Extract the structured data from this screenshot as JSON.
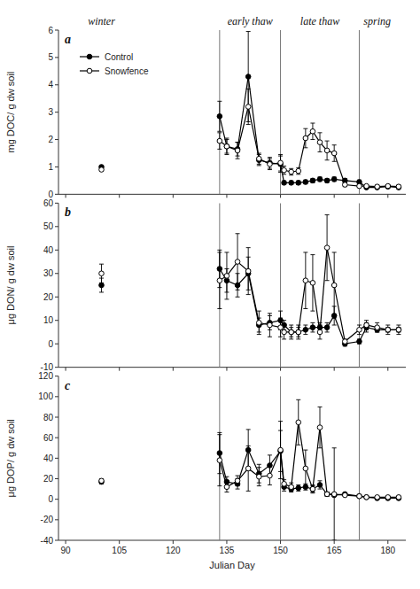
{
  "chart_data": [
    {
      "type": "line",
      "title": "a",
      "ylabel": "mg DOC/ g dw soil",
      "xlim": [
        88,
        185
      ],
      "xticks": [
        90,
        105,
        120,
        135,
        150,
        165,
        180
      ],
      "ylim": [
        0,
        6
      ],
      "yticks": [
        0,
        1,
        2,
        3,
        4,
        5,
        6
      ],
      "tick_labels": "y",
      "legend": "upper left",
      "vlines": [
        133,
        150,
        172
      ],
      "annotations": [
        {
          "text": "winter",
          "x": 100
        },
        {
          "text": "early thaw",
          "x": 141.5
        },
        {
          "text": "late thaw",
          "x": 161
        },
        {
          "text": "spring",
          "x": 177
        }
      ],
      "series": [
        {
          "name": "Control",
          "color": "black",
          "marker": "circle",
          "line_style": "solid",
          "x": [
            133,
            135,
            138,
            141,
            144,
            147,
            150,
            151,
            153,
            155,
            157,
            159,
            161,
            163,
            165,
            168,
            172,
            174,
            177,
            180,
            183
          ],
          "values": [
            2.85,
            1.75,
            1.65,
            4.3,
            1.25,
            1.15,
            1.1,
            0.42,
            0.42,
            0.42,
            0.45,
            0.5,
            0.55,
            0.5,
            0.55,
            0.5,
            0.45,
            0.25,
            0.25,
            0.28,
            0.25
          ],
          "errors": [
            0.55,
            0.25,
            0.25,
            1.65,
            0.2,
            0.2,
            0.3,
            0.07,
            0.07,
            0.07,
            0.07,
            0.08,
            0.08,
            0.07,
            0.08,
            0.08,
            0.07,
            0.04,
            0.04,
            0.04,
            0.04
          ]
        },
        {
          "name": "Snowfence",
          "color": "black",
          "marker": "open-circle",
          "line_style": "solid",
          "x": [
            133,
            135,
            138,
            141,
            144,
            147,
            150,
            151,
            153,
            155,
            157,
            159,
            161,
            163,
            165,
            168,
            172,
            174,
            177,
            180,
            183
          ],
          "values": [
            1.95,
            1.75,
            1.6,
            3.2,
            1.3,
            1.1,
            1.15,
            0.88,
            0.82,
            0.85,
            2.05,
            2.3,
            1.9,
            1.6,
            1.5,
            0.35,
            0.3,
            0.3,
            0.28,
            0.3,
            0.28
          ],
          "errors": [
            0.3,
            0.3,
            0.3,
            0.65,
            0.2,
            0.2,
            0.3,
            0.15,
            0.12,
            0.12,
            0.35,
            0.3,
            0.35,
            0.35,
            0.3,
            0.07,
            0.05,
            0.05,
            0.05,
            0.05,
            0.05
          ]
        },
        {
          "color": "black",
          "marker": "circle",
          "line_style": "none",
          "x": [
            100
          ],
          "values": [
            1.0
          ],
          "errors": [
            0.06
          ]
        },
        {
          "color": "black",
          "marker": "open-circle",
          "line_style": "none",
          "x": [
            100
          ],
          "values": [
            0.9
          ],
          "errors": [
            0.06
          ]
        }
      ]
    },
    {
      "type": "line",
      "title": "b",
      "ylabel": "μg DON/ g dw soil",
      "xlim": [
        88,
        185
      ],
      "xticks": [
        90,
        105,
        120,
        135,
        150,
        165,
        180
      ],
      "ylim": [
        -10,
        60
      ],
      "yticks": [
        -10,
        0,
        10,
        20,
        30,
        40,
        50,
        60
      ],
      "tick_labels": "y",
      "vlines": [
        133,
        150,
        172
      ],
      "series": [
        {
          "name": "Control",
          "color": "black",
          "marker": "circle",
          "line_style": "solid",
          "x": [
            133,
            135,
            138,
            141,
            144,
            147,
            150,
            151,
            153,
            155,
            157,
            159,
            161,
            163,
            165,
            168,
            172,
            174,
            177,
            180,
            183
          ],
          "values": [
            32,
            27,
            25,
            30,
            8,
            9,
            10,
            8,
            5,
            5,
            6,
            7,
            7,
            7,
            12,
            0,
            1,
            7,
            6,
            6,
            6
          ],
          "errors": [
            8,
            5,
            5,
            7,
            3,
            3,
            4,
            2,
            2,
            2,
            2,
            2,
            2,
            2,
            4,
            1,
            1,
            2,
            1,
            1,
            1
          ]
        },
        {
          "name": "Snowfence",
          "color": "black",
          "marker": "open-circle",
          "line_style": "solid",
          "x": [
            133,
            135,
            138,
            141,
            144,
            147,
            150,
            151,
            153,
            155,
            157,
            159,
            161,
            163,
            165,
            168,
            172,
            174,
            177,
            180,
            183
          ],
          "values": [
            27,
            29,
            35,
            31,
            9,
            8,
            7,
            5,
            5,
            5,
            27,
            26,
            5,
            41,
            25,
            1,
            6,
            8,
            7,
            6,
            6
          ],
          "errors": [
            12,
            10,
            12,
            10,
            5,
            5,
            4,
            3,
            3,
            3,
            12,
            12,
            3,
            14,
            14,
            1,
            2,
            2,
            2,
            2,
            2
          ]
        },
        {
          "color": "black",
          "marker": "circle",
          "line_style": "none",
          "x": [
            100
          ],
          "values": [
            25
          ],
          "errors": [
            3
          ]
        },
        {
          "color": "black",
          "marker": "open-circle",
          "line_style": "none",
          "x": [
            100
          ],
          "values": [
            30
          ],
          "errors": [
            4
          ]
        }
      ]
    },
    {
      "type": "line",
      "title": "c",
      "ylabel": "μg DOP/ g dw soil",
      "xlabel": "Julian Day",
      "xlim": [
        88,
        185
      ],
      "xticks": [
        90,
        105,
        120,
        135,
        150,
        165,
        180
      ],
      "ylim": [
        -40,
        120
      ],
      "yticks": [
        -40,
        -20,
        0,
        20,
        40,
        60,
        80,
        100,
        120
      ],
      "vlines": [
        133,
        150,
        172
      ],
      "series": [
        {
          "name": "Control",
          "color": "black",
          "marker": "circle",
          "line_style": "solid",
          "x": [
            133,
            135,
            138,
            141,
            144,
            147,
            150,
            151,
            153,
            155,
            157,
            159,
            161,
            163,
            165,
            168,
            172,
            174,
            177,
            180,
            183
          ],
          "values": [
            45,
            17,
            15,
            48,
            25,
            33,
            47,
            12,
            10,
            11,
            12,
            10,
            14,
            5,
            4,
            5,
            3,
            2,
            1,
            1,
            1
          ],
          "errors": [
            20,
            5,
            5,
            20,
            9,
            10,
            20,
            4,
            3,
            3,
            3,
            3,
            4,
            2,
            1,
            1,
            1,
            1,
            0.5,
            0.5,
            0.5
          ]
        },
        {
          "name": "Snowfence",
          "color": "black",
          "marker": "open-circle",
          "line_style": "solid",
          "x": [
            133,
            135,
            138,
            141,
            144,
            147,
            150,
            151,
            153,
            155,
            157,
            159,
            161,
            163,
            165,
            168,
            172,
            174,
            177,
            180,
            183
          ],
          "values": [
            38,
            12,
            18,
            30,
            22,
            23,
            48,
            15,
            12,
            75,
            30,
            10,
            70,
            5,
            5,
            4,
            3,
            2,
            2,
            2,
            2
          ],
          "errors": [
            25,
            5,
            5,
            22,
            9,
            9,
            28,
            4,
            4,
            22,
            18,
            4,
            20,
            2,
            45,
            1,
            1,
            1,
            1,
            1,
            1
          ]
        },
        {
          "color": "black",
          "marker": "circle",
          "line_style": "none",
          "x": [
            100
          ],
          "values": [
            17
          ],
          "errors": [
            2
          ]
        },
        {
          "color": "black",
          "marker": "open-circle",
          "line_style": "none",
          "x": [
            100
          ],
          "values": [
            18
          ],
          "errors": [
            2
          ]
        }
      ]
    }
  ]
}
